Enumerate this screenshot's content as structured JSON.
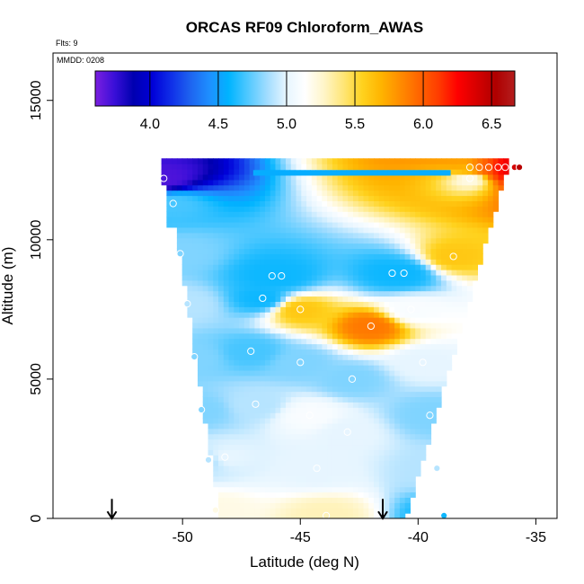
{
  "chart_data": {
    "type": "heatmap",
    "title": "ORCAS RF09 Chloroform_AWAS",
    "xlabel": "Latitude (deg N)",
    "ylabel": "Altitude (m)",
    "xlim": [
      -55.5,
      -34.1
    ],
    "ylim": [
      0,
      16700
    ],
    "x_ticks": [
      -50,
      -45,
      -40,
      -35
    ],
    "x_tick_labels": [
      "-50",
      "-45",
      "-40",
      "-35"
    ],
    "y_ticks": [
      0,
      5000,
      10000,
      15000
    ],
    "y_tick_labels": [
      "0",
      "5000",
      "10000",
      "15000"
    ],
    "flights_note": "Flts: 9",
    "date_note": "MMDD: 0208",
    "colorbar": {
      "range": [
        3.6,
        6.67
      ],
      "ticks": [
        4.0,
        4.5,
        5.0,
        5.5,
        6.0,
        6.5
      ],
      "tick_labels": [
        "4.0",
        "4.5",
        "5.0",
        "5.5",
        "6.0",
        "6.5"
      ],
      "colors": [
        "#7B1FE0",
        "#3A0FD8",
        "#0000B0",
        "#0000D8",
        "#1030E8",
        "#1E64F0",
        "#1E90FF",
        "#00B4FF",
        "#50C8FF",
        "#A0DCFF",
        "#E6F5FF",
        "#FFFFFF",
        "#FFF5C8",
        "#FFE678",
        "#FFD21E",
        "#FFB400",
        "#FF8C00",
        "#FF6400",
        "#FF3C00",
        "#FF0000",
        "#D70000",
        "#AF0000",
        "#B41E1E"
      ]
    },
    "arrows": [
      -53.0,
      -41.5
    ],
    "samples": [
      {
        "lat": -50.8,
        "alt": 12200,
        "value": 3.7
      },
      {
        "lat": -50.4,
        "alt": 11300,
        "value": 4.7
      },
      {
        "lat": -50.1,
        "alt": 9500,
        "value": 4.8
      },
      {
        "lat": -49.8,
        "alt": 7700,
        "value": 4.9
      },
      {
        "lat": -49.5,
        "alt": 5800,
        "value": 4.8
      },
      {
        "lat": -49.2,
        "alt": 3900,
        "value": 4.8
      },
      {
        "lat": -48.9,
        "alt": 2100,
        "value": 4.9
      },
      {
        "lat": -48.2,
        "alt": 2200,
        "value": 5.0
      },
      {
        "lat": -48.6,
        "alt": 300,
        "value": 5.2
      },
      {
        "lat": -47.1,
        "alt": 6000,
        "value": 4.7
      },
      {
        "lat": -46.9,
        "alt": 4100,
        "value": 4.9
      },
      {
        "lat": -46.6,
        "alt": 7900,
        "value": 4.6
      },
      {
        "lat": -46.2,
        "alt": 8700,
        "value": 4.6
      },
      {
        "lat": -45.8,
        "alt": 8700,
        "value": 4.6
      },
      {
        "lat": -45.0,
        "alt": 7500,
        "value": 5.6
      },
      {
        "lat": -45.0,
        "alt": 5600,
        "value": 4.8
      },
      {
        "lat": -44.6,
        "alt": 3700,
        "value": 5.1
      },
      {
        "lat": -44.3,
        "alt": 1800,
        "value": 5.0
      },
      {
        "lat": -43.9,
        "alt": 100,
        "value": 5.3
      },
      {
        "lat": -43.0,
        "alt": 3100,
        "value": 5.0
      },
      {
        "lat": -42.8,
        "alt": 5000,
        "value": 4.8
      },
      {
        "lat": -42.0,
        "alt": 6900,
        "value": 5.9
      },
      {
        "lat": -41.1,
        "alt": 8800,
        "value": 4.6
      },
      {
        "lat": -40.6,
        "alt": 8800,
        "value": 4.6
      },
      {
        "lat": -40.3,
        "alt": 7500,
        "value": 5.1
      },
      {
        "lat": -39.8,
        "alt": 5600,
        "value": 5.0
      },
      {
        "lat": -39.5,
        "alt": 3700,
        "value": 4.8
      },
      {
        "lat": -39.2,
        "alt": 1800,
        "value": 4.9
      },
      {
        "lat": -38.9,
        "alt": 100,
        "value": 4.6
      },
      {
        "lat": -38.5,
        "alt": 9400,
        "value": 5.6
      },
      {
        "lat": -37.8,
        "alt": 12600,
        "value": 5.7
      },
      {
        "lat": -36.3,
        "alt": 12600,
        "value": 6.3
      },
      {
        "lat": -35.9,
        "alt": 12600,
        "value": 6.4
      },
      {
        "lat": -35.7,
        "alt": 12600,
        "value": 6.5
      },
      {
        "lat": -37.0,
        "alt": 12600,
        "value": 6.0
      },
      {
        "lat": -36.6,
        "alt": 12600,
        "value": 6.2
      },
      {
        "lat": -37.4,
        "alt": 12600,
        "value": 5.9
      },
      {
        "lat": -37.8,
        "alt": 12200,
        "value": 5.2
      }
    ]
  }
}
